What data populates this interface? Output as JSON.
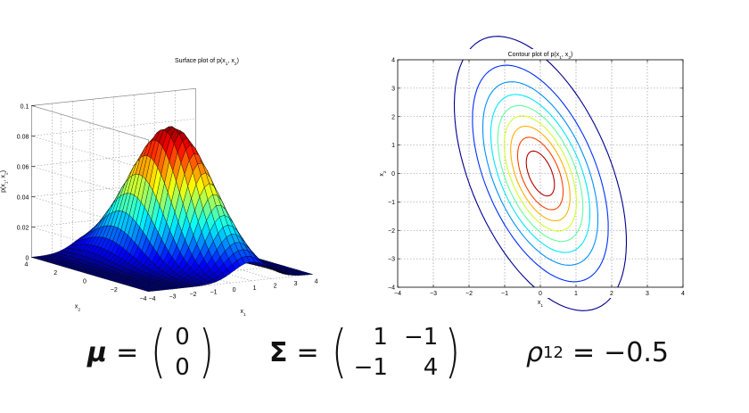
{
  "chart_data": [
    {
      "type": "surface",
      "title": "Surface plot of p(x1, x2)",
      "xlabel": "x1",
      "ylabel": "x2",
      "zlabel": "p(x1, x2)",
      "xlim": [
        -4,
        4
      ],
      "ylim": [
        -4,
        4
      ],
      "zlim": [
        0,
        0.1
      ],
      "xticks": [
        "−4",
        "−3",
        "−2",
        "−1",
        "0",
        "1",
        "2",
        "3",
        "4"
      ],
      "yticks": [
        "4",
        "2",
        "0",
        "−2",
        "−4"
      ],
      "zticks": [
        "0",
        "0.02",
        "0.04",
        "0.06",
        "0.08",
        "0.1"
      ],
      "colormap": "jet",
      "mean": [
        0,
        0
      ],
      "covariance": [
        [
          1,
          -1
        ],
        [
          -1,
          4
        ]
      ],
      "peak": 0.092
    },
    {
      "type": "contour",
      "title": "Contour plot of p(x1, x2)",
      "xlabel": "x1",
      "ylabel": "x2",
      "xlim": [
        -4,
        4
      ],
      "ylim": [
        -4,
        4
      ],
      "xticks": [
        "−4",
        "−3",
        "−2",
        "−1",
        "0",
        "1",
        "2",
        "3",
        "4"
      ],
      "yticks": [
        "4",
        "3",
        "2",
        "1",
        "0",
        "−1",
        "−2",
        "−3",
        "−4"
      ],
      "grid": true,
      "levels": [
        0.005,
        0.015,
        0.025,
        0.035,
        0.045,
        0.055,
        0.065,
        0.075,
        0.085
      ],
      "level_colors": [
        "#00008f",
        "#0030ff",
        "#0090ff",
        "#00e8ff",
        "#60ff9f",
        "#d0ff30",
        "#ffb000",
        "#ff4000",
        "#b00000"
      ],
      "mean": [
        0,
        0
      ],
      "covariance": [
        [
          1,
          -1
        ],
        [
          -1,
          4
        ]
      ]
    }
  ],
  "equation": {
    "mu_symbol": "μ",
    "equals": "=",
    "mu": [
      "0",
      "0"
    ],
    "sigma_symbol": "Σ",
    "sigma": [
      [
        "1",
        "−1"
      ],
      [
        "−1",
        "4"
      ]
    ],
    "rho_symbol": "ρ",
    "rho_sub": "12",
    "rho_value": "−0.5",
    "paren_open": "(",
    "paren_close": ")"
  }
}
